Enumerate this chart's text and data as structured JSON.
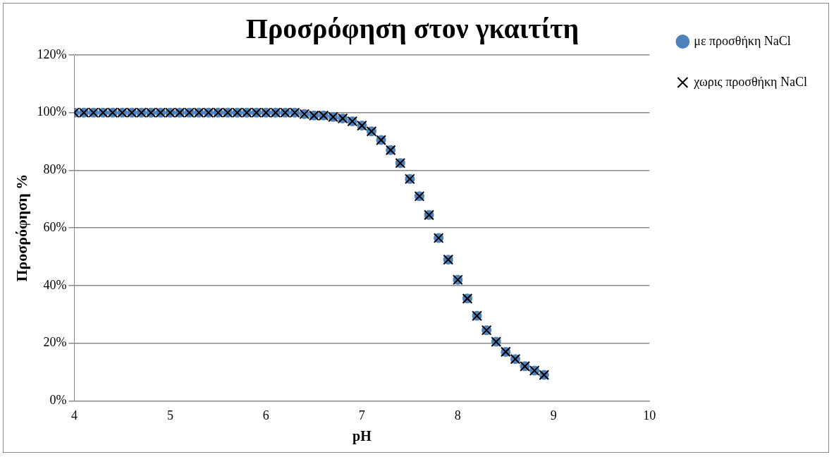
{
  "chart_data": {
    "type": "scatter",
    "title": "Προσρόφηση στον γκαιτίτη",
    "xlabel": "pH",
    "ylabel": "Προσρόφηση %",
    "x": [
      4.0,
      4.1,
      4.2,
      4.3,
      4.4,
      4.5,
      4.6,
      4.7,
      4.8,
      4.9,
      5.0,
      5.1,
      5.2,
      5.3,
      5.4,
      5.5,
      5.6,
      5.7,
      5.8,
      5.9,
      6.0,
      6.1,
      6.2,
      6.3,
      6.4,
      6.5,
      6.6,
      6.7,
      6.8,
      6.9,
      7.0,
      7.1,
      7.2,
      7.3,
      7.4,
      7.5,
      7.6,
      7.7,
      7.8,
      7.9,
      8.0,
      8.1,
      8.2,
      8.3,
      8.4,
      8.5,
      8.6,
      8.7,
      8.8,
      8.9
    ],
    "series": [
      {
        "name": "με προσθήκη NaCl",
        "color": "#4f81bd",
        "marker": "circle",
        "values": [
          100,
          100,
          100,
          100,
          100,
          100,
          100,
          100,
          100,
          100,
          100,
          100,
          100,
          100,
          100,
          100,
          100,
          100,
          100,
          100,
          100,
          100,
          100,
          100,
          99.5,
          99,
          99,
          98.5,
          98,
          97,
          95.5,
          93.5,
          90.5,
          87,
          82.5,
          77,
          71,
          64.5,
          56.5,
          49,
          42,
          35.5,
          29.5,
          24.5,
          20.5,
          17,
          14.5,
          12,
          10.5,
          9
        ]
      },
      {
        "name": "χωρις προσθήκη NaCl",
        "color": "#000000",
        "marker": "cross",
        "values": [
          100,
          100,
          100,
          100,
          100,
          100,
          100,
          100,
          100,
          100,
          100,
          100,
          100,
          100,
          100,
          100,
          100,
          100,
          100,
          100,
          100,
          100,
          100,
          100,
          99.5,
          99,
          99,
          98.5,
          98,
          97,
          95.5,
          93.5,
          90.5,
          87,
          82.5,
          77,
          71,
          64.5,
          56.5,
          49,
          42,
          35.5,
          29.5,
          24.5,
          20.5,
          17,
          14.5,
          12,
          10.5,
          9
        ]
      }
    ],
    "xlim": [
      4,
      10
    ],
    "xticks": [
      4,
      5,
      6,
      7,
      8,
      9,
      10
    ],
    "ylim": [
      0,
      120
    ],
    "yticks": [
      {
        "value": 0,
        "label": "0%"
      },
      {
        "value": 20,
        "label": "20%"
      },
      {
        "value": 40,
        "label": "40%"
      },
      {
        "value": 60,
        "label": "60%"
      },
      {
        "value": 80,
        "label": "80%"
      },
      {
        "value": 100,
        "label": "100%"
      },
      {
        "value": 120,
        "label": "120%"
      }
    ],
    "grid": "y",
    "legend": "top right"
  }
}
